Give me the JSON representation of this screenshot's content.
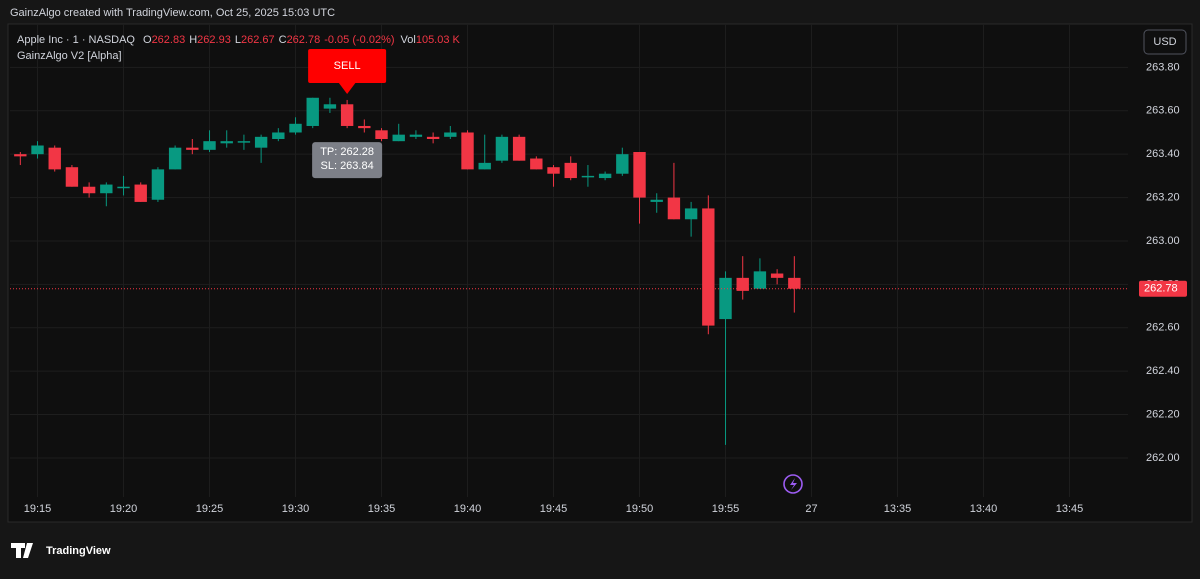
{
  "header": {
    "credit": "GainzAlgo created with TradingView.com, Oct 25, 2025 15:03 UTC",
    "brand": "TradingView"
  },
  "chart_data": {
    "type": "candlestick",
    "symbol": "Apple Inc · 1 · NASDAQ",
    "ohlc_legend": [
      {
        "label": "O",
        "value": "262.83"
      },
      {
        "label": "H",
        "value": "262.93"
      },
      {
        "label": "L",
        "value": "262.67"
      },
      {
        "label": "C",
        "value": "262.78"
      }
    ],
    "change": "-0.05 (-0.02%)",
    "volume": {
      "label": "Vol",
      "value": "105.03 K"
    },
    "indicator": "GainzAlgo V2 [Alpha]",
    "currency": "USD",
    "up_color": "#089981",
    "down_color": "#f23645",
    "x": [
      "19:14",
      "19:15",
      "19:16",
      "19:17",
      "19:18",
      "19:19",
      "19:20",
      "19:21",
      "19:22",
      "19:23",
      "19:24",
      "19:25",
      "19:26",
      "19:27",
      "19:28",
      "19:29",
      "19:30",
      "19:31",
      "19:32",
      "19:33",
      "19:34",
      "19:35",
      "19:36",
      "19:37",
      "19:38",
      "19:39",
      "19:40",
      "19:41",
      "19:42",
      "19:43",
      "19:44",
      "19:45",
      "19:46",
      "19:47",
      "19:48",
      "19:49",
      "19:50",
      "19:51",
      "19:52",
      "19:53",
      "19:54",
      "19:55",
      "19:56",
      "19:57",
      "19:58",
      "19:59"
    ],
    "open": [
      263.4,
      263.4,
      263.43,
      263.34,
      263.25,
      263.22,
      263.25,
      263.26,
      263.19,
      263.33,
      263.43,
      263.42,
      263.45,
      263.46,
      263.43,
      263.47,
      263.5,
      263.53,
      263.61,
      263.63,
      263.53,
      263.51,
      263.46,
      263.48,
      263.48,
      263.48,
      263.5,
      263.33,
      263.37,
      263.48,
      263.38,
      263.34,
      263.36,
      263.3,
      263.29,
      263.31,
      263.41,
      263.18,
      263.2,
      263.1,
      263.15,
      262.64,
      262.83,
      262.78,
      262.85,
      262.83
    ],
    "high": [
      263.41,
      263.46,
      263.44,
      263.35,
      263.27,
      263.27,
      263.3,
      263.27,
      263.34,
      263.44,
      263.47,
      263.51,
      263.51,
      263.49,
      263.49,
      263.52,
      263.57,
      263.66,
      263.66,
      263.65,
      263.56,
      263.52,
      263.54,
      263.51,
      263.5,
      263.53,
      263.51,
      263.49,
      263.49,
      263.49,
      263.39,
      263.35,
      263.39,
      263.35,
      263.32,
      263.43,
      263.41,
      263.22,
      263.36,
      263.18,
      263.21,
      262.86,
      262.93,
      262.92,
      262.87,
      262.93
    ],
    "low": [
      263.35,
      263.38,
      263.32,
      263.25,
      263.2,
      263.16,
      263.21,
      263.18,
      263.18,
      263.33,
      263.4,
      263.41,
      263.43,
      263.42,
      263.36,
      263.46,
      263.49,
      263.52,
      263.59,
      263.52,
      263.5,
      263.46,
      263.46,
      263.47,
      263.45,
      263.47,
      263.33,
      263.33,
      263.36,
      263.37,
      263.33,
      263.25,
      263.28,
      263.25,
      263.28,
      263.3,
      263.08,
      263.13,
      263.1,
      263.02,
      262.57,
      262.06,
      262.73,
      262.78,
      262.8,
      262.67
    ],
    "close": [
      263.39,
      263.44,
      263.33,
      263.25,
      263.22,
      263.26,
      263.25,
      263.18,
      263.33,
      263.43,
      263.42,
      263.46,
      263.46,
      263.46,
      263.48,
      263.5,
      263.54,
      263.66,
      263.63,
      263.53,
      263.52,
      263.47,
      263.49,
      263.49,
      263.47,
      263.5,
      263.33,
      263.36,
      263.48,
      263.37,
      263.33,
      263.31,
      263.29,
      263.3,
      263.31,
      263.4,
      263.2,
      263.19,
      263.1,
      263.15,
      262.61,
      262.83,
      262.77,
      262.86,
      262.83,
      262.78
    ],
    "xlim": [
      -0.6,
      64.4
    ],
    "xticks": [
      {
        "value": 1,
        "label": "19:15"
      },
      {
        "value": 6,
        "label": "19:20"
      },
      {
        "value": 11,
        "label": "19:25"
      },
      {
        "value": 16,
        "label": "19:30"
      },
      {
        "value": 21,
        "label": "19:35"
      },
      {
        "value": 26,
        "label": "19:40"
      },
      {
        "value": 31,
        "label": "19:45"
      },
      {
        "value": 36,
        "label": "19:50"
      },
      {
        "value": 41,
        "label": "19:55"
      },
      {
        "value": 46,
        "label": "27"
      },
      {
        "value": 51,
        "label": "13:35"
      },
      {
        "value": 56,
        "label": "13:40"
      },
      {
        "value": 61,
        "label": "13:45"
      }
    ],
    "ylim": [
      261.82,
      264.0
    ],
    "yticks": [
      {
        "value": 262.0,
        "label": "262.00"
      },
      {
        "value": 262.2,
        "label": "262.20"
      },
      {
        "value": 262.4,
        "label": "262.40"
      },
      {
        "value": 262.6,
        "label": "262.60"
      },
      {
        "value": 262.8,
        "label": "262.80"
      },
      {
        "value": 263.0,
        "label": "263.00"
      },
      {
        "value": 263.2,
        "label": "263.20"
      },
      {
        "value": 263.4,
        "label": "263.40"
      },
      {
        "value": 263.6,
        "label": "263.60"
      },
      {
        "value": 263.8,
        "label": "263.80"
      }
    ],
    "grid": true,
    "last_price": {
      "value": 262.78,
      "label": "262.78"
    },
    "signal": {
      "label": "SELL",
      "index": 19,
      "lines": [
        "TP: 262.28",
        "SL: 263.84"
      ]
    }
  }
}
